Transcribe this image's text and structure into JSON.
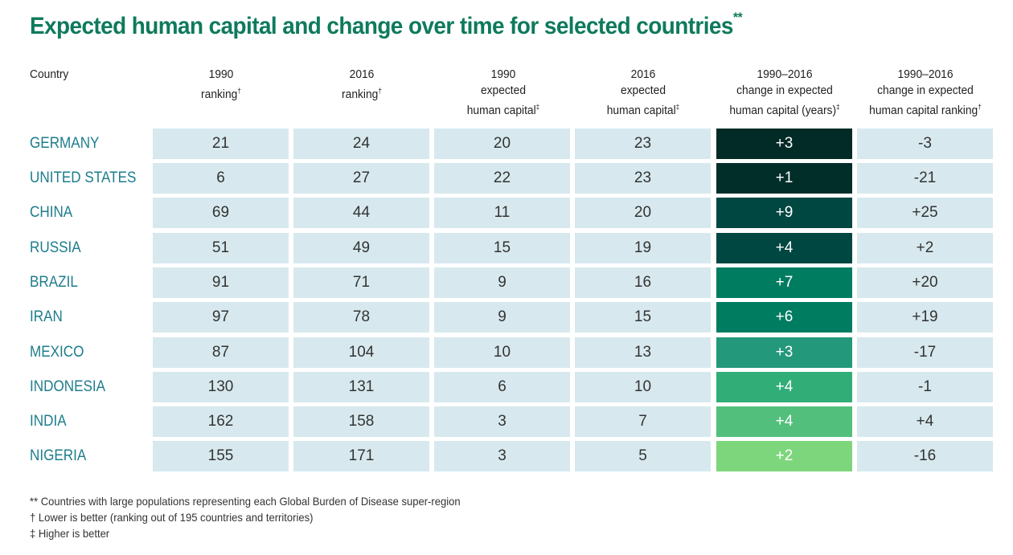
{
  "title": "Expected human capital and change over time for selected countries",
  "title_mark": "**",
  "chart_data": {
    "type": "table",
    "columns": [
      {
        "lines": [
          "Country"
        ],
        "mark": ""
      },
      {
        "lines": [
          "1990",
          "ranking"
        ],
        "mark": "†"
      },
      {
        "lines": [
          "2016",
          "ranking"
        ],
        "mark": "†"
      },
      {
        "lines": [
          "1990",
          "expected",
          "human capital"
        ],
        "mark": "‡"
      },
      {
        "lines": [
          "2016",
          "expected",
          "human capital"
        ],
        "mark": "‡"
      },
      {
        "lines": [
          "1990–2016",
          "change in expected",
          "human capital (years)"
        ],
        "mark": "‡"
      },
      {
        "lines": [
          "1990–2016",
          "change in expected",
          "human capital ranking"
        ],
        "mark": "†"
      }
    ],
    "rows": [
      {
        "country": "GERMANY",
        "values": [
          "21",
          "24",
          "20",
          "23",
          "+3",
          "-3"
        ]
      },
      {
        "country": "UNITED STATES",
        "values": [
          "6",
          "27",
          "22",
          "23",
          "+1",
          "-21"
        ]
      },
      {
        "country": "CHINA",
        "values": [
          "69",
          "44",
          "11",
          "20",
          "+9",
          "+25"
        ]
      },
      {
        "country": "RUSSIA",
        "values": [
          "51",
          "49",
          "15",
          "19",
          "+4",
          "+2"
        ]
      },
      {
        "country": "BRAZIL",
        "values": [
          "91",
          "71",
          "9",
          "16",
          "+7",
          "+20"
        ]
      },
      {
        "country": "IRAN",
        "values": [
          "97",
          "78",
          "9",
          "15",
          "+6",
          "+19"
        ]
      },
      {
        "country": "MEXICO",
        "values": [
          "87",
          "104",
          "10",
          "13",
          "+3",
          "-17"
        ]
      },
      {
        "country": "INDONESIA",
        "values": [
          "130",
          "131",
          "6",
          "10",
          "+4",
          "-1"
        ]
      },
      {
        "country": "INDIA",
        "values": [
          "162",
          "158",
          "3",
          "7",
          "+4",
          "+4"
        ]
      },
      {
        "country": "NIGERIA",
        "values": [
          "155",
          "171",
          "3",
          "5",
          "+2",
          "-16"
        ]
      }
    ],
    "highlight_column": 4,
    "highlight_colors": [
      "#022b27",
      "#022e2a",
      "#014741",
      "#014741",
      "#007c61",
      "#007c61",
      "#23987a",
      "#31ae78",
      "#52c07c",
      "#7dd67c"
    ]
  },
  "footnotes": [
    "** Countries with large populations representing each Global Burden of Disease super-region",
    "† Lower is better (ranking out of 195 countries and territories)",
    "‡ Higher is better"
  ]
}
